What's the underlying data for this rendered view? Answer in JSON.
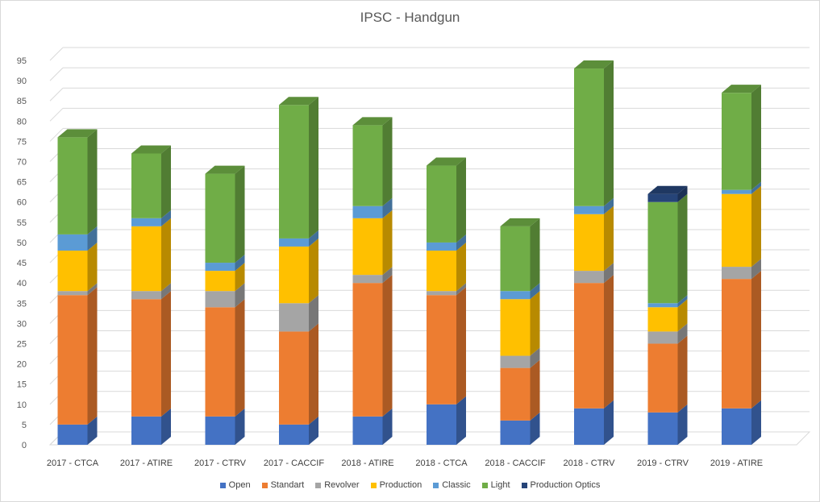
{
  "chart_data": {
    "type": "bar",
    "stacked": true,
    "style": "3d-column",
    "title": "IPSC - Handgun",
    "xlabel": "",
    "ylabel": "",
    "ylim": [
      0,
      95
    ],
    "yticks": [
      0,
      5,
      10,
      15,
      20,
      25,
      30,
      35,
      40,
      45,
      50,
      55,
      60,
      65,
      70,
      75,
      80,
      85,
      90,
      95
    ],
    "grid": true,
    "legend_position": "bottom",
    "categories": [
      "2017 - CTCA",
      "2017 - ATIRE",
      "2017 - CTRV",
      "2017 - CACCIF",
      "2018 - ATIRE",
      "2018 - CTCA",
      "2018 - CACCIF",
      "2018 - CTRV",
      "2019 - CTRV",
      "2019 - ATIRE"
    ],
    "series": [
      {
        "name": "Open",
        "color": "#4472c4",
        "values": [
          5,
          7,
          7,
          5,
          7,
          10,
          6,
          9,
          8,
          9
        ]
      },
      {
        "name": "Standart",
        "color": "#ed7d31",
        "values": [
          32,
          29,
          27,
          23,
          33,
          27,
          13,
          31,
          17,
          32
        ]
      },
      {
        "name": "Revolver",
        "color": "#a5a5a5",
        "values": [
          1,
          2,
          4,
          7,
          2,
          1,
          3,
          3,
          3,
          3
        ]
      },
      {
        "name": "Production",
        "color": "#ffc000",
        "values": [
          10,
          16,
          5,
          14,
          14,
          10,
          14,
          14,
          6,
          18
        ]
      },
      {
        "name": "Classic",
        "color": "#5b9bd5",
        "values": [
          4,
          2,
          2,
          2,
          3,
          2,
          2,
          2,
          1,
          1
        ]
      },
      {
        "name": "Light",
        "color": "#70ad47",
        "values": [
          24,
          16,
          22,
          33,
          20,
          19,
          16,
          34,
          25,
          24
        ]
      },
      {
        "name": "Production Optics",
        "color": "#264478",
        "values": [
          0,
          0,
          0,
          0,
          0,
          0,
          0,
          0,
          2,
          0
        ]
      }
    ]
  }
}
